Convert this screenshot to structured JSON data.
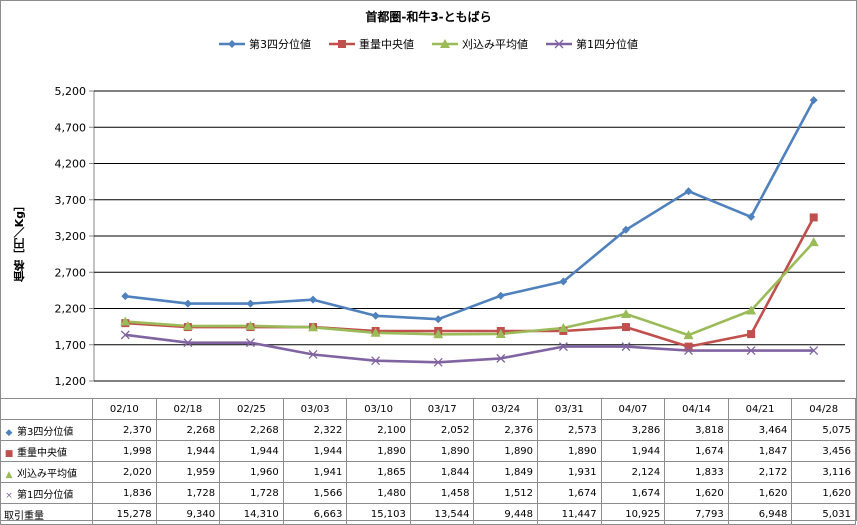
{
  "chart_data": {
    "type": "line",
    "title": "首都圏-和牛3-ともばら",
    "ylabel": "価格［円／Kg］",
    "ylim": [
      1200,
      5200
    ],
    "yticks": [
      1200,
      1700,
      2200,
      2700,
      3200,
      3700,
      4200,
      4700,
      5200
    ],
    "ytick_labels": [
      "1,200",
      "1,700",
      "2,200",
      "2,700",
      "3,200",
      "3,700",
      "4,200",
      "4,700",
      "5,200"
    ],
    "grid": true,
    "legend_position": "top",
    "categories": [
      "02/10",
      "02/18",
      "02/25",
      "03/03",
      "03/10",
      "03/17",
      "03/24",
      "03/31",
      "04/07",
      "04/14",
      "04/21",
      "04/28"
    ],
    "series": [
      {
        "name": "第3四分位値",
        "color": "#4f81bd",
        "marker": "diamond",
        "marker_glyph": "◆",
        "values": [
          2370,
          2268,
          2268,
          2322,
          2100,
          2052,
          2376,
          2573,
          3286,
          3818,
          3464,
          5075
        ],
        "labels": [
          "2,370",
          "2,268",
          "2,268",
          "2,322",
          "2,100",
          "2,052",
          "2,376",
          "2,573",
          "3,286",
          "3,818",
          "3,464",
          "5,075"
        ]
      },
      {
        "name": "重量中央値",
        "color": "#c0504d",
        "marker": "square",
        "marker_glyph": "■",
        "values": [
          1998,
          1944,
          1944,
          1944,
          1890,
          1890,
          1890,
          1890,
          1944,
          1674,
          1847,
          3456
        ],
        "labels": [
          "1,998",
          "1,944",
          "1,944",
          "1,944",
          "1,890",
          "1,890",
          "1,890",
          "1,890",
          "1,944",
          "1,674",
          "1,847",
          "3,456"
        ]
      },
      {
        "name": "刈込み平均値",
        "color": "#9bbb59",
        "marker": "triangle",
        "marker_glyph": "▲",
        "values": [
          2020,
          1959,
          1960,
          1941,
          1865,
          1844,
          1849,
          1931,
          2124,
          1833,
          2172,
          3116
        ],
        "labels": [
          "2,020",
          "1,959",
          "1,960",
          "1,941",
          "1,865",
          "1,844",
          "1,849",
          "1,931",
          "2,124",
          "1,833",
          "2,172",
          "3,116"
        ]
      },
      {
        "name": "第1四分位値",
        "color": "#8064a2",
        "marker": "x",
        "marker_glyph": "×",
        "values": [
          1836,
          1728,
          1728,
          1566,
          1480,
          1458,
          1512,
          1674,
          1674,
          1620,
          1620,
          1620
        ],
        "labels": [
          "1,836",
          "1,728",
          "1,728",
          "1,566",
          "1,480",
          "1,458",
          "1,512",
          "1,674",
          "1,674",
          "1,620",
          "1,620",
          "1,620"
        ]
      }
    ],
    "extra_rows": [
      {
        "name": "取引重量",
        "values": [
          15278,
          9340,
          14310,
          6663,
          15103,
          13544,
          9448,
          11447,
          10925,
          7793,
          6948,
          5031
        ],
        "labels": [
          "15,278",
          "9,340",
          "14,310",
          "6,663",
          "15,103",
          "13,544",
          "9,448",
          "11,447",
          "10,925",
          "7,793",
          "6,948",
          "5,031"
        ]
      }
    ]
  }
}
